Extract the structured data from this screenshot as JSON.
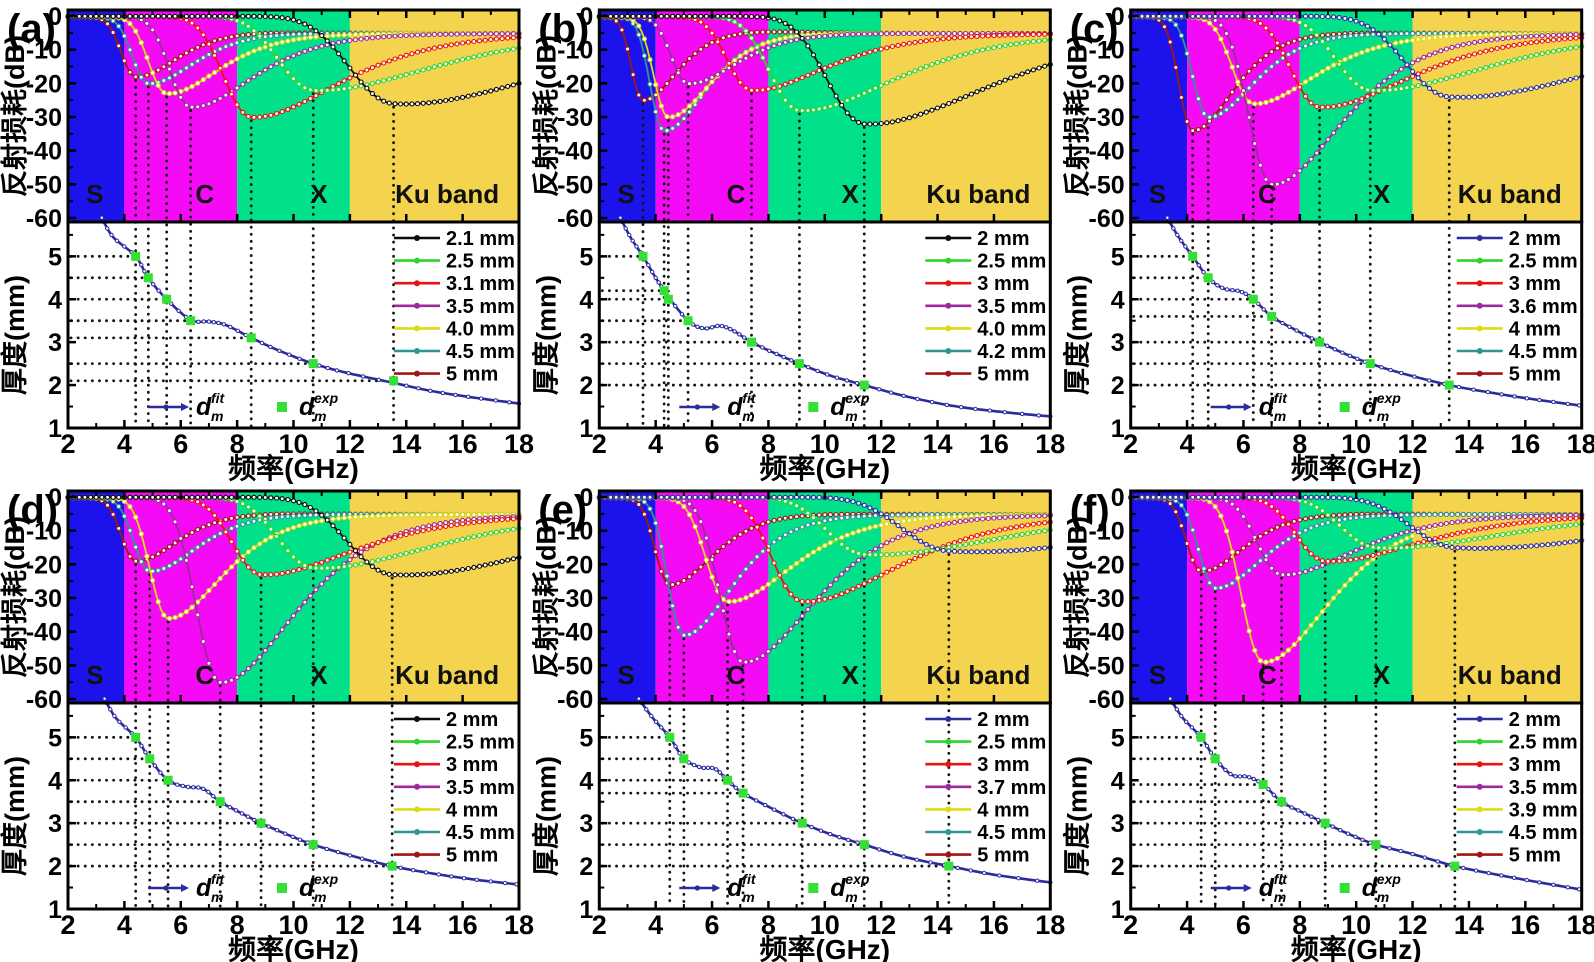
{
  "chart_data": {
    "type": "line",
    "description": "Six panels (a)-(f); each has a reflection-loss vs frequency plot (top, 0 to -60 dB, shaded S/C/X/Ku microwave bands) and a matching-thickness vs frequency plot (bottom, 1-5 mm) with fitted curve and experimental points",
    "axis_text": {
      "rl": "反射损耗(dB)",
      "thickness": "厚度(mm)",
      "freq": "频率(GHz)"
    },
    "axes": {
      "freq_range": [
        2,
        18
      ],
      "rl_range": [
        0,
        -60
      ],
      "thickness_range": [
        1,
        5.8
      ],
      "freq_ticks": [
        2,
        4,
        6,
        8,
        10,
        12,
        14,
        16,
        18
      ],
      "freq_minor": [
        3,
        5,
        7,
        9,
        11,
        13,
        15,
        17
      ],
      "rl_ticks": [
        0,
        -10,
        -20,
        -30,
        -40,
        -50,
        -60
      ],
      "rl_minor": [
        -5,
        -15,
        -25,
        -35,
        -45,
        -55
      ],
      "thickness_ticks": [
        5,
        4,
        3,
        2,
        1
      ],
      "thickness_minor": [
        5.5,
        4.5,
        3.5,
        2.5,
        1.5
      ]
    },
    "bands": [
      {
        "name": "S",
        "range_GHz": [
          2,
          4
        ],
        "color": "#1c13ec",
        "label_f": 2.95
      },
      {
        "name": "C",
        "range_GHz": [
          4,
          8
        ],
        "color": "#f40af4",
        "label_f": 6.85
      },
      {
        "name": "X",
        "range_GHz": [
          8,
          12
        ],
        "color": "#00e189",
        "label_f": 10.9
      },
      {
        "name": "Ku band",
        "range_GHz": [
          12,
          18
        ],
        "color": "#f4d44f",
        "label_f": 15.45
      }
    ],
    "palette": {
      "black": "#0b0b0b",
      "navy": "#2e2e9e",
      "green": "#2dd42d",
      "red": "#ea1212",
      "purple": "#9c2a9c",
      "yellow": "#dedb12",
      "teal": "#2f9494",
      "maroon": "#a01616"
    },
    "fit_legend": {
      "base": "d",
      "sub": "m",
      "sup_fit": "fit",
      "sup_exp": "exp",
      "fit_color": "#2b2b9b",
      "exp_color": "#35e035"
    },
    "guide_color": "#141414",
    "panels": [
      {
        "label": "(a)",
        "series": [
          {
            "label": "2.1 mm",
            "color": "black",
            "thickness_mm": 2.1,
            "dip_freq_GHz": 13.55,
            "min_rl_dB": -25
          },
          {
            "label": "2.5 mm",
            "color": "green",
            "thickness_mm": 2.5,
            "dip_freq_GHz": 10.7,
            "min_rl_dB": -21
          },
          {
            "label": "3.1 mm",
            "color": "red",
            "thickness_mm": 3.1,
            "dip_freq_GHz": 8.5,
            "min_rl_dB": -29
          },
          {
            "label": "3.5 mm",
            "color": "purple",
            "thickness_mm": 3.5,
            "dip_freq_GHz": 6.35,
            "min_rl_dB": -26
          },
          {
            "label": "4.0 mm",
            "color": "yellow",
            "thickness_mm": 4.0,
            "dip_freq_GHz": 5.5,
            "min_rl_dB": -22
          },
          {
            "label": "4.5 mm",
            "color": "teal",
            "thickness_mm": 4.5,
            "dip_freq_GHz": 4.85,
            "min_rl_dB": -19
          },
          {
            "label": "5 mm",
            "color": "maroon",
            "thickness_mm": 5.0,
            "dip_freq_GHz": 4.4,
            "min_rl_dB": -17
          }
        ],
        "exp_points": [
          [
            4.4,
            5.0
          ],
          [
            4.85,
            4.5
          ],
          [
            5.5,
            4.0
          ],
          [
            6.35,
            3.5
          ],
          [
            8.5,
            3.1
          ],
          [
            10.7,
            2.5
          ],
          [
            13.55,
            2.1
          ]
        ],
        "fit_points": [
          [
            3.2,
            5.9
          ],
          [
            3.6,
            5.45
          ],
          [
            4.4,
            5.0
          ],
          [
            4.85,
            4.5
          ],
          [
            5.5,
            4.0
          ],
          [
            6.35,
            3.52
          ],
          [
            7.0,
            3.48
          ],
          [
            7.6,
            3.4
          ],
          [
            8.5,
            3.1
          ],
          [
            9.5,
            2.8
          ],
          [
            10.7,
            2.5
          ],
          [
            11.8,
            2.3
          ],
          [
            13.55,
            2.05
          ],
          [
            15.0,
            1.85
          ],
          [
            16.5,
            1.7
          ],
          [
            18.0,
            1.57
          ]
        ]
      },
      {
        "label": "(b)",
        "series": [
          {
            "label": "2 mm",
            "color": "black",
            "thickness_mm": 2.0,
            "dip_freq_GHz": 11.4,
            "min_rl_dB": -31
          },
          {
            "label": "2.5 mm",
            "color": "green",
            "thickness_mm": 2.5,
            "dip_freq_GHz": 9.1,
            "min_rl_dB": -27
          },
          {
            "label": "3 mm",
            "color": "red",
            "thickness_mm": 3.0,
            "dip_freq_GHz": 7.4,
            "min_rl_dB": -21
          },
          {
            "label": "3.5 mm",
            "color": "purple",
            "thickness_mm": 3.5,
            "dip_freq_GHz": 5.15,
            "min_rl_dB": -19
          },
          {
            "label": "4.0 mm",
            "color": "yellow",
            "thickness_mm": 4.0,
            "dip_freq_GHz": 4.45,
            "min_rl_dB": -29
          },
          {
            "label": "4.2 mm",
            "color": "teal",
            "thickness_mm": 4.2,
            "dip_freq_GHz": 4.3,
            "min_rl_dB": -33
          },
          {
            "label": "5 mm",
            "color": "maroon",
            "thickness_mm": 5.0,
            "dip_freq_GHz": 3.55,
            "min_rl_dB": -24
          }
        ],
        "exp_points": [
          [
            3.55,
            5.0
          ],
          [
            4.3,
            4.2
          ],
          [
            4.45,
            4.0
          ],
          [
            5.15,
            3.5
          ],
          [
            7.4,
            3.0
          ],
          [
            9.1,
            2.5
          ],
          [
            11.4,
            2.0
          ]
        ],
        "fit_points": [
          [
            2.75,
            5.9
          ],
          [
            3.1,
            5.45
          ],
          [
            3.55,
            5.0
          ],
          [
            4.0,
            4.5
          ],
          [
            4.3,
            4.2
          ],
          [
            4.45,
            4.05
          ],
          [
            5.15,
            3.5
          ],
          [
            5.7,
            3.32
          ],
          [
            6.3,
            3.38
          ],
          [
            6.8,
            3.25
          ],
          [
            7.4,
            3.0
          ],
          [
            8.2,
            2.75
          ],
          [
            9.1,
            2.5
          ],
          [
            10.2,
            2.22
          ],
          [
            11.4,
            2.0
          ],
          [
            12.8,
            1.75
          ],
          [
            14.5,
            1.52
          ],
          [
            16.2,
            1.38
          ],
          [
            18.0,
            1.27
          ]
        ]
      },
      {
        "label": "(c)",
        "series": [
          {
            "label": "2 mm",
            "color": "navy",
            "thickness_mm": 2.0,
            "dip_freq_GHz": 13.3,
            "min_rl_dB": -23
          },
          {
            "label": "2.5 mm",
            "color": "green",
            "thickness_mm": 2.5,
            "dip_freq_GHz": 10.5,
            "min_rl_dB": -21
          },
          {
            "label": "3 mm",
            "color": "red",
            "thickness_mm": 3.0,
            "dip_freq_GHz": 8.7,
            "min_rl_dB": -26
          },
          {
            "label": "3.6 mm",
            "color": "purple",
            "thickness_mm": 3.6,
            "dip_freq_GHz": 7.0,
            "min_rl_dB": -49
          },
          {
            "label": "4 mm",
            "color": "yellow",
            "thickness_mm": 4.0,
            "dip_freq_GHz": 6.35,
            "min_rl_dB": -25
          },
          {
            "label": "4.5 mm",
            "color": "teal",
            "thickness_mm": 4.5,
            "dip_freq_GHz": 4.75,
            "min_rl_dB": -29
          },
          {
            "label": "5 mm",
            "color": "maroon",
            "thickness_mm": 5.0,
            "dip_freq_GHz": 4.2,
            "min_rl_dB": -33
          }
        ],
        "exp_points": [
          [
            4.2,
            5.0
          ],
          [
            4.75,
            4.5
          ],
          [
            6.35,
            4.0
          ],
          [
            7.0,
            3.6
          ],
          [
            8.7,
            3.0
          ],
          [
            10.5,
            2.5
          ],
          [
            13.3,
            2.0
          ]
        ],
        "fit_points": [
          [
            3.3,
            5.9
          ],
          [
            3.7,
            5.45
          ],
          [
            4.2,
            5.0
          ],
          [
            4.75,
            4.5
          ],
          [
            5.3,
            4.25
          ],
          [
            5.9,
            4.18
          ],
          [
            6.35,
            4.0
          ],
          [
            7.0,
            3.6
          ],
          [
            7.8,
            3.3
          ],
          [
            8.7,
            3.0
          ],
          [
            9.6,
            2.73
          ],
          [
            10.5,
            2.5
          ],
          [
            11.6,
            2.28
          ],
          [
            13.3,
            2.0
          ],
          [
            15.0,
            1.8
          ],
          [
            16.5,
            1.65
          ],
          [
            18.0,
            1.52
          ]
        ]
      },
      {
        "label": "(d)",
        "series": [
          {
            "label": "2 mm",
            "color": "black",
            "thickness_mm": 2.0,
            "dip_freq_GHz": 13.5,
            "min_rl_dB": -22
          },
          {
            "label": "2.5 mm",
            "color": "green",
            "thickness_mm": 2.5,
            "dip_freq_GHz": 10.7,
            "min_rl_dB": -20
          },
          {
            "label": "3 mm",
            "color": "red",
            "thickness_mm": 3.0,
            "dip_freq_GHz": 8.85,
            "min_rl_dB": -22
          },
          {
            "label": "3.5 mm",
            "color": "purple",
            "thickness_mm": 3.5,
            "dip_freq_GHz": 7.4,
            "min_rl_dB": -54
          },
          {
            "label": "4 mm",
            "color": "yellow",
            "thickness_mm": 4.0,
            "dip_freq_GHz": 5.55,
            "min_rl_dB": -35
          },
          {
            "label": "4.5 mm",
            "color": "teal",
            "thickness_mm": 4.5,
            "dip_freq_GHz": 4.9,
            "min_rl_dB": -21
          },
          {
            "label": "5 mm",
            "color": "maroon",
            "thickness_mm": 5.0,
            "dip_freq_GHz": 4.4,
            "min_rl_dB": -18
          }
        ],
        "exp_points": [
          [
            4.4,
            5.0
          ],
          [
            4.9,
            4.5
          ],
          [
            5.55,
            4.0
          ],
          [
            7.4,
            3.5
          ],
          [
            8.85,
            3.0
          ],
          [
            10.7,
            2.5
          ],
          [
            13.5,
            2.0
          ]
        ],
        "fit_points": [
          [
            3.3,
            5.9
          ],
          [
            3.7,
            5.45
          ],
          [
            4.4,
            5.0
          ],
          [
            4.9,
            4.5
          ],
          [
            5.55,
            4.0
          ],
          [
            6.2,
            3.85
          ],
          [
            6.8,
            3.8
          ],
          [
            7.4,
            3.5
          ],
          [
            8.1,
            3.25
          ],
          [
            8.85,
            3.0
          ],
          [
            9.8,
            2.73
          ],
          [
            10.7,
            2.5
          ],
          [
            12.0,
            2.25
          ],
          [
            13.5,
            2.0
          ],
          [
            15.0,
            1.82
          ],
          [
            16.5,
            1.68
          ],
          [
            18.0,
            1.57
          ]
        ]
      },
      {
        "label": "(e)",
        "series": [
          {
            "label": "2 mm",
            "color": "navy",
            "thickness_mm": 2.0,
            "dip_freq_GHz": 14.4,
            "min_rl_dB": -15
          },
          {
            "label": "2.5 mm",
            "color": "green",
            "thickness_mm": 2.5,
            "dip_freq_GHz": 11.4,
            "min_rl_dB": -16
          },
          {
            "label": "3 mm",
            "color": "red",
            "thickness_mm": 3.0,
            "dip_freq_GHz": 9.2,
            "min_rl_dB": -30
          },
          {
            "label": "3.7 mm",
            "color": "purple",
            "thickness_mm": 3.7,
            "dip_freq_GHz": 7.1,
            "min_rl_dB": -48
          },
          {
            "label": "4 mm",
            "color": "yellow",
            "thickness_mm": 4.0,
            "dip_freq_GHz": 6.55,
            "min_rl_dB": -30
          },
          {
            "label": "4.5 mm",
            "color": "teal",
            "thickness_mm": 4.5,
            "dip_freq_GHz": 5.0,
            "min_rl_dB": -40
          },
          {
            "label": "5 mm",
            "color": "maroon",
            "thickness_mm": 5.0,
            "dip_freq_GHz": 4.5,
            "min_rl_dB": -25
          }
        ],
        "exp_points": [
          [
            4.5,
            5.0
          ],
          [
            5.0,
            4.5
          ],
          [
            6.55,
            4.0
          ],
          [
            7.1,
            3.7
          ],
          [
            9.2,
            3.0
          ],
          [
            11.4,
            2.5
          ],
          [
            14.4,
            2.0
          ]
        ],
        "fit_points": [
          [
            3.4,
            5.9
          ],
          [
            3.9,
            5.45
          ],
          [
            4.5,
            5.0
          ],
          [
            5.0,
            4.5
          ],
          [
            5.6,
            4.3
          ],
          [
            6.1,
            4.27
          ],
          [
            6.55,
            4.0
          ],
          [
            7.1,
            3.7
          ],
          [
            8.1,
            3.35
          ],
          [
            9.2,
            3.0
          ],
          [
            10.3,
            2.72
          ],
          [
            11.4,
            2.5
          ],
          [
            12.8,
            2.22
          ],
          [
            14.4,
            2.0
          ],
          [
            16.0,
            1.8
          ],
          [
            18.0,
            1.62
          ]
        ]
      },
      {
        "label": "(f)",
        "series": [
          {
            "label": "2 mm",
            "color": "navy",
            "thickness_mm": 2.0,
            "dip_freq_GHz": 13.5,
            "min_rl_dB": -14
          },
          {
            "label": "2.5 mm",
            "color": "green",
            "thickness_mm": 2.5,
            "dip_freq_GHz": 10.7,
            "min_rl_dB": -14
          },
          {
            "label": "3 mm",
            "color": "red",
            "thickness_mm": 3.0,
            "dip_freq_GHz": 8.9,
            "min_rl_dB": -18
          },
          {
            "label": "3.5 mm",
            "color": "purple",
            "thickness_mm": 3.5,
            "dip_freq_GHz": 7.35,
            "min_rl_dB": -22
          },
          {
            "label": "3.9 mm",
            "color": "yellow",
            "thickness_mm": 3.9,
            "dip_freq_GHz": 6.7,
            "min_rl_dB": -48
          },
          {
            "label": "4.5 mm",
            "color": "teal",
            "thickness_mm": 4.5,
            "dip_freq_GHz": 5.0,
            "min_rl_dB": -26
          },
          {
            "label": "5 mm",
            "color": "maroon",
            "thickness_mm": 5.0,
            "dip_freq_GHz": 4.5,
            "min_rl_dB": -21
          }
        ],
        "exp_points": [
          [
            4.5,
            5.0
          ],
          [
            5.0,
            4.5
          ],
          [
            6.7,
            3.9
          ],
          [
            7.35,
            3.5
          ],
          [
            8.9,
            3.0
          ],
          [
            10.7,
            2.5
          ],
          [
            13.5,
            2.0
          ]
        ],
        "fit_points": [
          [
            3.4,
            5.9
          ],
          [
            3.85,
            5.45
          ],
          [
            4.5,
            5.0
          ],
          [
            5.0,
            4.5
          ],
          [
            5.6,
            4.12
          ],
          [
            6.15,
            4.08
          ],
          [
            6.7,
            3.9
          ],
          [
            7.35,
            3.5
          ],
          [
            8.1,
            3.25
          ],
          [
            8.9,
            3.0
          ],
          [
            9.8,
            2.73
          ],
          [
            10.7,
            2.5
          ],
          [
            12.0,
            2.28
          ],
          [
            13.5,
            2.0
          ],
          [
            15.0,
            1.8
          ],
          [
            16.5,
            1.62
          ],
          [
            18.0,
            1.45
          ]
        ]
      }
    ]
  }
}
